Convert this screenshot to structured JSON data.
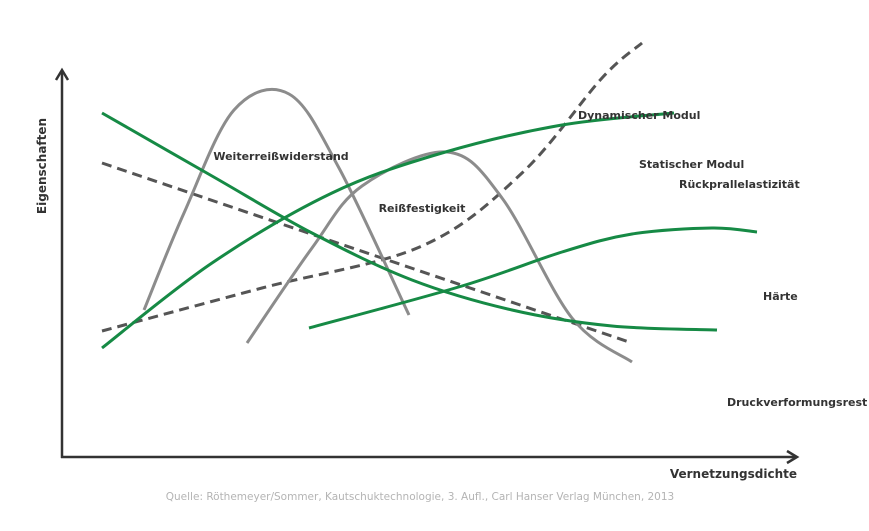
{
  "chart_data": {
    "type": "line",
    "title": "",
    "xlabel": "Vernetzungsdichte",
    "ylabel": "Eigenschaften",
    "source": "Quelle: Röthemeyer/Sommer, Kautschuktechnologie, 3. Aufl., Carl Hanser Verlag München, 2013",
    "grid": false,
    "axis_ticks": false,
    "colors": {
      "green": "#168a45",
      "gray": "#8c8c8c",
      "dark_dashed": "#555555",
      "axis": "#333333",
      "text": "#333333",
      "source": "#b4b4b4"
    },
    "series": [
      {
        "name": "Dynamischer Modul",
        "color": "dark_dashed",
        "dash": true,
        "smooth": false,
        "points": [
          [
            40,
            295
          ],
          [
            570,
            115
          ]
        ]
      },
      {
        "name": "Statischer Modul",
        "color": "dark_dashed",
        "dash": true,
        "smooth": true,
        "points": [
          [
            40,
            127
          ],
          [
            200,
            170
          ],
          [
            360,
            212
          ],
          [
            460,
            285
          ],
          [
            540,
            380
          ],
          [
            580,
            415
          ]
        ]
      },
      {
        "name": "Weiterreißwiderstand",
        "color": "gray",
        "dash": false,
        "smooth": true,
        "points": [
          [
            82,
            148
          ],
          [
            122,
            245
          ],
          [
            172,
            348
          ],
          [
            227,
            364
          ],
          [
            277,
            290
          ],
          [
            347,
            143
          ]
        ]
      },
      {
        "name": "Reißfestigkeit",
        "color": "gray",
        "dash": false,
        "smooth": true,
        "points": [
          [
            185,
            115
          ],
          [
            250,
            210
          ],
          [
            300,
            272
          ],
          [
            385,
            306
          ],
          [
            440,
            260
          ],
          [
            510,
            140
          ],
          [
            570,
            96
          ]
        ]
      },
      {
        "name": "Rückprallelastizität",
        "color": "green",
        "dash": false,
        "smooth": true,
        "points": [
          [
            40,
            110
          ],
          [
            150,
            195
          ],
          [
            270,
            265
          ],
          [
            380,
            305
          ],
          [
            500,
            333
          ],
          [
            612,
            345
          ]
        ]
      },
      {
        "name": "Härte",
        "color": "green",
        "dash": false,
        "smooth": true,
        "points": [
          [
            247,
            130
          ],
          [
            400,
            172
          ],
          [
            500,
            206
          ],
          [
            570,
            224
          ],
          [
            650,
            230
          ],
          [
            695,
            226
          ]
        ]
      },
      {
        "name": "Druckverformungsrest",
        "color": "green",
        "dash": false,
        "smooth": true,
        "points": [
          [
            40,
            345
          ],
          [
            150,
            282
          ],
          [
            250,
            225
          ],
          [
            350,
            178
          ],
          [
            450,
            148
          ],
          [
            550,
            132
          ],
          [
            655,
            128
          ]
        ]
      }
    ],
    "series_labels": [
      {
        "text": "Dynamischer Modul",
        "anchor": "start"
      },
      {
        "text": "Statischer Modul",
        "anchor": "start"
      },
      {
        "text": "Weiterreißwiderstand",
        "anchor": "middle"
      },
      {
        "text": "Reißfestigkeit",
        "anchor": "middle"
      },
      {
        "text": "Rückprallelastizität",
        "anchor": "start"
      },
      {
        "text": "Härte",
        "anchor": "start"
      },
      {
        "text": "Druckverformungsrest",
        "anchor": "start"
      }
    ]
  }
}
